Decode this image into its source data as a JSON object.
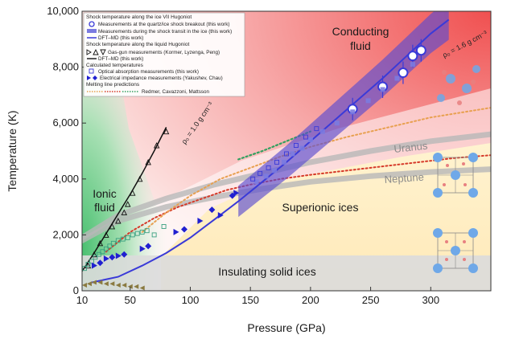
{
  "chart_data": {
    "type": "scatter",
    "xlabel": "Pressure (GPa)",
    "ylabel": "Temperature (K)",
    "xlim": [
      10,
      350
    ],
    "ylim": [
      0,
      10000
    ],
    "x_ticks": [
      "10",
      "50",
      "100",
      "150",
      "200",
      "250",
      "300"
    ],
    "x_tick_values": [
      10,
      50,
      100,
      150,
      200,
      250,
      300
    ],
    "y_ticks": [
      "0",
      "2,000",
      "4,000",
      "6,000",
      "8,000",
      "10,000"
    ],
    "y_tick_values": [
      0,
      2000,
      4000,
      6000,
      8000,
      10000
    ],
    "region_labels": {
      "conducting": "Conducting\nfluid",
      "ionic": "Ionic\nfluid",
      "superionic": "Superionic ices",
      "insulating": "Insulating solid ices"
    },
    "planet_labels": {
      "uranus": "Uranus",
      "neptune": "Neptune"
    },
    "rho_labels": {
      "liquid": "ρ₀ = 1.0 g cm⁻³",
      "ice": "ρ₀ = 1.6 g cm⁻³"
    },
    "colors": {
      "blue": "#3a3ad8",
      "band": "#5a4bd0",
      "green": "#33a060",
      "orange": "#e8a050",
      "red": "#d63a2a"
    },
    "legend": {
      "header1": "Shock temperature along the ice VII Hugoniot",
      "items1": [
        "Measurements at the quartz/ice shock breakout (this work)",
        "Measurements during the shock transit in the ice (this work)",
        "DFT–MD (this work)"
      ],
      "header2": "Shock temperature along the liquid Hugoniot",
      "items2": [
        "Gas-gun measurements (Kormer, Lyzenga, Peng)",
        "DFT–MD (this work)"
      ],
      "header3": "Calculated temperatures",
      "items3": [
        "Optical absorption measurements (this work)",
        "Electrical impedance measurements (Yakushev, Chau)"
      ],
      "header4": "Melting line predictions",
      "items4": [
        "Redmer, Cavazzoni, Mattsson"
      ]
    },
    "series": [
      {
        "name": "Measurements at the quartz/ice shock breakout (this work)",
        "x": [
          235,
          260,
          277,
          285,
          292
        ],
        "y": [
          6500,
          7300,
          7800,
          8400,
          8600
        ]
      },
      {
        "name": "Measurements during the shock transit in the ice (this work)",
        "x": [
          155,
          163,
          170,
          178,
          185,
          193,
          200,
          210,
          222,
          235,
          248,
          260,
          272,
          285
        ],
        "y": [
          3900,
          4100,
          4300,
          4600,
          4900,
          5100,
          5400,
          5700,
          6000,
          6400,
          6800,
          7200,
          7600,
          8100
        ]
      },
      {
        "name": "DFT–MD (this work) – ice VII Hugoniot",
        "x": [
          18,
          40,
          60,
          80,
          100,
          120,
          140,
          160,
          180,
          200,
          220,
          240,
          260,
          280,
          300,
          315
        ],
        "y": [
          300,
          500,
          900,
          1350,
          1900,
          2550,
          3200,
          3900,
          4600,
          5350,
          6100,
          6850,
          7600,
          8400,
          9200,
          9700
        ]
      },
      {
        "name": "Gas-gun measurements (Kormer, Lyzenga, Peng)",
        "x": [
          15,
          20,
          25,
          30,
          35,
          40,
          45,
          48,
          52,
          58,
          65,
          72,
          80
        ],
        "y": [
          900,
          1300,
          1700,
          2000,
          2300,
          2500,
          2800,
          3100,
          3500,
          4000,
          4600,
          5200,
          5700
        ]
      },
      {
        "name": "DFT–MD (this work) – liquid Hugoniot",
        "x": [
          10,
          20,
          30,
          40,
          50,
          60,
          70,
          80
        ],
        "y": [
          700,
          1350,
          2050,
          2750,
          3450,
          4200,
          5000,
          5850
        ]
      },
      {
        "name": "Optical absorption measurements (this work)",
        "x": [
          12,
          15,
          18,
          21,
          24,
          27,
          30,
          33,
          36,
          40,
          44,
          48,
          52,
          56,
          60,
          64,
          70,
          78,
          152,
          158,
          165,
          172,
          180,
          188,
          196,
          205
        ],
        "y": [
          800,
          950,
          1050,
          1200,
          1300,
          1400,
          1500,
          1600,
          1700,
          1800,
          1850,
          1900,
          2000,
          2050,
          2100,
          2150,
          2000,
          2300,
          4000,
          4200,
          4400,
          4600,
          4900,
          5200,
          5500,
          5800
        ]
      },
      {
        "name": "Electrical impedance measurements (Yakushev, Chau)",
        "x": [
          20,
          25,
          30,
          35,
          40,
          45,
          60,
          65,
          88,
          95,
          108,
          118,
          125,
          135,
          138
        ],
        "y": [
          900,
          1000,
          1150,
          1200,
          1250,
          1300,
          1500,
          1600,
          2100,
          2200,
          2500,
          2900,
          2700,
          3400,
          3500
        ]
      },
      {
        "name": "Gas-gun measurements – low temperature",
        "x": [
          12,
          16,
          20,
          25,
          30,
          35,
          40,
          45,
          50,
          55,
          60
        ],
        "y": [
          200,
          250,
          300,
          300,
          250,
          250,
          200,
          200,
          150,
          150,
          100
        ]
      }
    ],
    "curves": {
      "redmer": {
        "x": [
          30,
          50,
          70,
          90,
          110,
          130,
          150,
          175,
          200,
          230,
          260,
          290,
          320,
          350
        ],
        "y": [
          1400,
          2100,
          2600,
          3000,
          3300,
          3600,
          3800,
          4000,
          4150,
          4300,
          4450,
          4600,
          4750,
          4850
        ]
      },
      "cavazzoni": {
        "x": [
          60,
          80,
          100,
          125,
          150,
          175,
          200,
          230,
          260,
          300,
          350
        ],
        "y": [
          2100,
          2800,
          3400,
          4000,
          4400,
          4800,
          5150,
          5500,
          5800,
          6200,
          6550
        ]
      },
      "mattsson": {
        "x": [
          140,
          160,
          180,
          200
        ],
        "y": [
          4700,
          5000,
          5350,
          5700
        ]
      },
      "uranus": {
        "x": [
          10,
          40,
          80,
          120,
          160,
          200,
          250,
          300,
          350
        ],
        "y": [
          1900,
          2700,
          3300,
          3800,
          4200,
          4600,
          5000,
          5350,
          5600
        ]
      },
      "neptune": {
        "x": [
          10,
          40,
          80,
          120,
          160,
          200,
          250,
          300,
          350
        ],
        "y": [
          1800,
          2500,
          3000,
          3350,
          3650,
          3900,
          4100,
          4250,
          4350
        ]
      }
    },
    "grid": false,
    "legend_position": "top-left"
  }
}
